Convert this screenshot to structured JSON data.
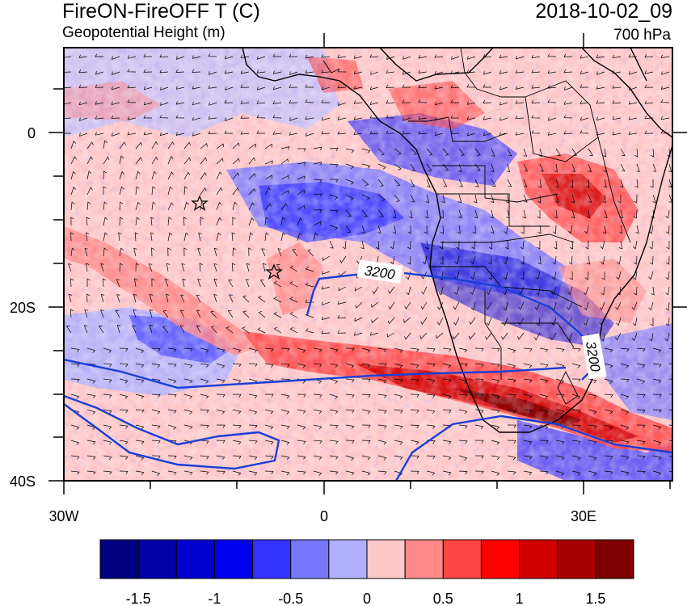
{
  "title": {
    "main": "FireON-FireOFF T (C)",
    "subtitle": "Geopotential Height (m)",
    "datetime": "2018-10-02_09",
    "level": "700 hPa"
  },
  "map": {
    "lat_ticks": [
      "0",
      "20S",
      "40S"
    ],
    "lon_ticks": [
      "30W",
      "0",
      "30E"
    ],
    "markers": [
      "star",
      "star"
    ],
    "contour_labels": [
      "3200",
      "3200"
    ]
  },
  "colorbar": {
    "colors": [
      "#000080",
      "#0000a8",
      "#0000d0",
      "#0000f0",
      "#3333ff",
      "#7777ff",
      "#b0b0ff",
      "#ffc8c8",
      "#ff8888",
      "#ff4444",
      "#ff0000",
      "#d00000",
      "#a80000",
      "#800000"
    ],
    "labels": [
      "-1.5",
      "-1",
      "-0.5",
      "0",
      "0.5",
      "1",
      "1.5"
    ]
  }
}
